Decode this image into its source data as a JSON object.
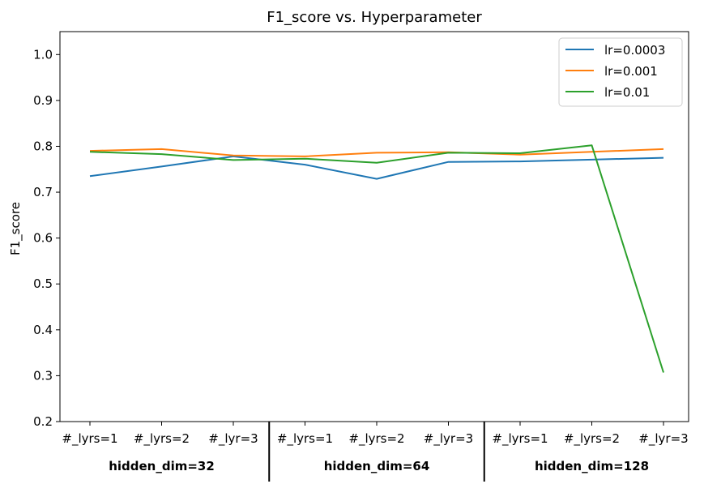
{
  "chart_data": {
    "type": "line",
    "title": "F1_score vs. Hyperparameter",
    "xlabel": "",
    "ylabel": "F1_score",
    "ylim": [
      0.2,
      1.05
    ],
    "yticks": [
      "0.2",
      "0.3",
      "0.4",
      "0.5",
      "0.6",
      "0.7",
      "0.8",
      "0.9",
      "1.0"
    ],
    "categories": [
      "#_lyrs=1",
      "#_lyrs=2",
      "#_lyr=3",
      "#_lyrs=1",
      "#_lyrs=2",
      "#_lyr=3",
      "#_lyrs=1",
      "#_lyrs=2",
      "#_lyr=3"
    ],
    "groups": [
      "hidden_dim=32",
      "hidden_dim=64",
      "hidden_dim=128"
    ],
    "grid": false,
    "legend_position": "top-right",
    "series": [
      {
        "name": "lr=0.0003",
        "color": "#1f77b4",
        "values": [
          0.735,
          0.756,
          0.778,
          0.76,
          0.729,
          0.766,
          0.767,
          0.771,
          0.775
        ]
      },
      {
        "name": "lr=0.001",
        "color": "#ff7f0e",
        "values": [
          0.79,
          0.794,
          0.78,
          0.778,
          0.786,
          0.787,
          0.782,
          0.788,
          0.794
        ]
      },
      {
        "name": "lr=0.01",
        "color": "#2ca02c",
        "values": [
          0.788,
          0.783,
          0.77,
          0.773,
          0.764,
          0.786,
          0.785,
          0.802,
          0.307
        ]
      }
    ]
  }
}
